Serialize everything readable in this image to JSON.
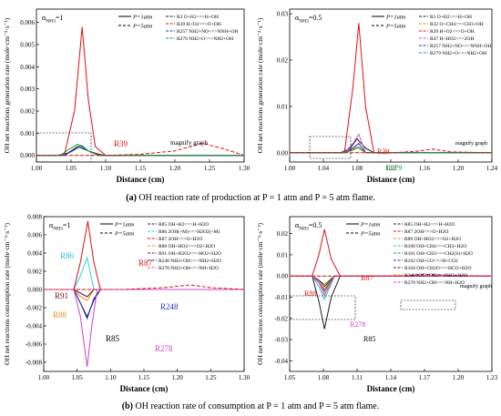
{
  "captions": {
    "a_prefix": "(a)",
    "a_text": "OH reaction rate of production at P = 1 atm and P = 5 atm flame.",
    "b_prefix": "(b)",
    "b_text": "OH reaction rate of consumption at P = 1 atm and P = 5 atm flame."
  },
  "chart_data": [
    {
      "id": "a-left",
      "type": "line",
      "panel_label": "α_NH3=1",
      "panel_label_main": "α",
      "panel_label_sub": "NH3",
      "panel_label_value": "=1",
      "xlabel": "Distance (cm)",
      "ylabel": "OH net reactions generation rate (mole·cm⁻³·s⁻¹)",
      "xlim": [
        1.0,
        1.3
      ],
      "ylim": [
        -0.0003,
        0.0066
      ],
      "xticks": [
        "1.00",
        "1.05",
        "1.10",
        "1.15",
        "1.20",
        "1.25",
        "1.30"
      ],
      "yticks": [
        "0.000",
        "0.001",
        "0.002",
        "0.003",
        "0.004",
        "0.005",
        "0.006"
      ],
      "ytick_values": [
        0,
        0.001,
        0.002,
        0.003,
        0.004,
        0.005,
        0.006
      ],
      "pressure_legend": [
        "P=1atm",
        "P=5atm"
      ],
      "series": [
        {
          "name": "R3 O+H2<=>H+OH",
          "color": "#1a1a1a",
          "x": [
            1.0,
            1.03,
            1.045,
            1.06,
            1.075,
            1.09,
            1.1,
            1.2,
            1.3
          ],
          "y": [
            0,
            0,
            0.0001,
            0.0004,
            0.0002,
            5e-05,
            0,
            0,
            0
          ]
        },
        {
          "name": "R39 H+O2<=>O+OH",
          "color": "#e01010",
          "x": [
            1.0,
            1.04,
            1.055,
            1.066,
            1.075,
            1.085,
            1.1,
            1.2,
            1.3
          ],
          "y": [
            0,
            0,
            0.002,
            0.0058,
            0.0025,
            0.0004,
            0,
            0,
            0
          ]
        },
        {
          "name": "R257 NH2+NO<=>NNH+OH",
          "color": "#2233cc",
          "x": [
            1.0,
            1.04,
            1.055,
            1.065,
            1.075,
            1.09,
            1.3
          ],
          "y": [
            0,
            0,
            0.00025,
            0.00045,
            0.0002,
            0,
            0
          ]
        },
        {
          "name": "R279 NH2+O<=>NH2+OH",
          "color": "#10a030",
          "x": [
            1.0,
            1.035,
            1.048,
            1.06,
            1.075,
            1.09,
            1.3
          ],
          "y": [
            0,
            0,
            0.0003,
            0.0005,
            0.0002,
            0,
            0
          ]
        },
        {
          "name": "R39 H+O2<=>O+OH (5 atm)",
          "color": "#e01010",
          "dashed": true,
          "x": [
            1.0,
            1.1,
            1.15,
            1.2,
            1.24,
            1.27,
            1.3
          ],
          "y": [
            0,
            0,
            5e-05,
            0.0002,
            0.00055,
            0.0003,
            0
          ]
        }
      ],
      "annotations": [
        "R39",
        "magnify graph"
      ]
    },
    {
      "id": "a-right",
      "type": "line",
      "panel_label": "α_NH3=0.5",
      "panel_label_main": "α",
      "panel_label_sub": "NH3",
      "panel_label_value": "=0.5",
      "xlabel": "Distance (cm)",
      "ylabel": "OH net reactions generation rate (mole·cm⁻³·s⁻¹)",
      "xlim": [
        1.0,
        1.24
      ],
      "ylim": [
        -0.002,
        0.031
      ],
      "xticks": [
        "1.00",
        "1.04",
        "1.08",
        "1.12",
        "1.16",
        "1.20",
        "1.24"
      ],
      "yticks": [
        "0.00",
        "0.01",
        "0.02",
        "0.03"
      ],
      "ytick_values": [
        0,
        0.01,
        0.02,
        0.03
      ],
      "pressure_legend": [
        "P=1atm",
        "P=5atm"
      ],
      "series": [
        {
          "name": "R3 O+H2<=>H+OH",
          "color": "#1a1a1a",
          "x": [
            1.0,
            1.06,
            1.072,
            1.08,
            1.09,
            1.1,
            1.24
          ],
          "y": [
            0,
            0,
            0.001,
            0.003,
            0.001,
            0,
            0
          ]
        },
        {
          "name": "R32 O+CH4<=>CH3+OH",
          "color": "#e09020",
          "x": [
            1.0,
            1.06,
            1.072,
            1.08,
            1.09,
            1.24
          ],
          "y": [
            0,
            0,
            0.0006,
            0.0012,
            0,
            0
          ]
        },
        {
          "name": "R39 H+O2<=>O+OH",
          "color": "#e01010",
          "x": [
            1.0,
            1.065,
            1.075,
            1.082,
            1.09,
            1.1,
            1.24
          ],
          "y": [
            0,
            0,
            0.014,
            0.028,
            0.01,
            0,
            0
          ]
        },
        {
          "name": "R47 H+HO2<=>2OH",
          "color": "#d060d0",
          "x": [
            1.0,
            1.065,
            1.075,
            1.082,
            1.09,
            1.24
          ],
          "y": [
            0,
            0,
            0.002,
            0.004,
            0,
            0
          ]
        },
        {
          "name": "R257 NH2+NO<=>NNH+OH",
          "color": "#2233cc",
          "x": [
            1.0,
            1.065,
            1.075,
            1.082,
            1.09,
            1.24
          ],
          "y": [
            0,
            0,
            0.001,
            0.002,
            0,
            0
          ]
        },
        {
          "name": "R279 NH2+O<=>NH2+OH",
          "color": "#10a030",
          "x": [
            1.0,
            1.065,
            1.075,
            1.082,
            1.09,
            1.24
          ],
          "y": [
            0,
            0,
            0.0006,
            0.0012,
            0,
            0
          ]
        },
        {
          "name": "R39 H+O2<=>O+OH (5 atm)",
          "color": "#e01010",
          "dashed": true,
          "x": [
            1.0,
            1.12,
            1.15,
            1.17,
            1.19,
            1.24
          ],
          "y": [
            0,
            0,
            0.0003,
            0.0008,
            0.0002,
            0
          ]
        }
      ],
      "annotations": [
        "R39",
        "R279",
        "magnify graph"
      ]
    },
    {
      "id": "b-left",
      "type": "line",
      "panel_label": "α_NH3=1",
      "panel_label_main": "α",
      "panel_label_sub": "NH3",
      "panel_label_value": "=1",
      "xlabel": "Distance (cm)",
      "ylabel": "OH net reactions consumption rate (mole·cm⁻³·s⁻¹)",
      "xlim": [
        1.0,
        1.3
      ],
      "ylim": [
        -0.009,
        0.008
      ],
      "xticks": [
        "1.00",
        "1.05",
        "1.10",
        "1.15",
        "1.20",
        "1.25",
        "1.30"
      ],
      "yticks": [
        "-0.008",
        "-0.006",
        "-0.004",
        "-0.002",
        "0.000",
        "0.002",
        "0.004",
        "0.006",
        "0.008"
      ],
      "ytick_values": [
        -0.008,
        -0.006,
        -0.004,
        -0.002,
        0,
        0.002,
        0.004,
        0.006,
        0.008
      ],
      "pressure_legend": [
        "P=1atm",
        "P=5atm"
      ],
      "series": [
        {
          "name": "R85 OH+H2<=>H+H2O",
          "color": "#1a1a1a",
          "x": [
            1.0,
            1.045,
            1.055,
            1.065,
            1.075,
            1.085,
            1.3
          ],
          "y": [
            0,
            0,
            -0.0015,
            -0.003,
            -0.0012,
            0,
            0
          ]
        },
        {
          "name": "R86 2OH(+M)<=>H2O2(+M)",
          "color": "#30d0e0",
          "x": [
            1.0,
            1.045,
            1.055,
            1.065,
            1.075,
            1.3
          ],
          "y": [
            0,
            0,
            0.0015,
            0.0035,
            0,
            0
          ]
        },
        {
          "name": "R87 2OH<=>O+H2O",
          "color": "#e01010",
          "x": [
            1.0,
            1.045,
            1.055,
            1.066,
            1.075,
            1.085,
            1.3
          ],
          "y": [
            0,
            0,
            0.003,
            0.0075,
            0.003,
            0,
            0
          ]
        },
        {
          "name": "R88 OH+HO2<=>O2+H2O",
          "color": "#e09020",
          "x": [
            1.0,
            1.045,
            1.055,
            1.065,
            1.075,
            1.3
          ],
          "y": [
            0,
            0,
            -0.0008,
            -0.0012,
            0,
            0
          ]
        },
        {
          "name": "R91 OH+H2O2<=>HO2+H2O",
          "color": "#7a1010",
          "x": [
            1.0,
            1.045,
            1.055,
            1.065,
            1.075,
            1.3
          ],
          "y": [
            0,
            0,
            -0.0004,
            -0.0008,
            0,
            0
          ]
        },
        {
          "name": "R248 NH3+OH<=>NH2+H2O",
          "color": "#2233cc",
          "x": [
            1.0,
            1.045,
            1.055,
            1.065,
            1.075,
            1.085,
            1.3
          ],
          "y": [
            0,
            0,
            -0.0015,
            -0.0032,
            -0.001,
            0,
            0
          ]
        },
        {
          "name": "R278 NH2+OH<=>NH+H2O",
          "color": "#d040d0",
          "x": [
            1.0,
            1.045,
            1.055,
            1.065,
            1.072,
            1.08,
            1.3
          ],
          "y": [
            0,
            0,
            -0.003,
            -0.0085,
            -0.004,
            0,
            0
          ]
        },
        {
          "name": "R87 2OH<=>O+H2O (5 atm)",
          "color": "#e01010",
          "dashed": true,
          "x": [
            1.0,
            1.12,
            1.18,
            1.22,
            1.25,
            1.3
          ],
          "y": [
            0,
            0,
            0.0002,
            0.0005,
            0.0002,
            0
          ]
        }
      ],
      "annotations": [
        "R86",
        "R91",
        "R87",
        "R88",
        "R85",
        "R248",
        "R278"
      ]
    },
    {
      "id": "b-right",
      "type": "line",
      "panel_label": "α_NH3=0.5",
      "panel_label_main": "α",
      "panel_label_sub": "NH3",
      "panel_label_value": "=0.5",
      "xlabel": "Distance (cm)",
      "ylabel": "OH net reactions consumption rate (mole·cm⁻³·s⁻¹)",
      "xlim": [
        1.05,
        1.23
      ],
      "ylim": [
        -0.045,
        0.028
      ],
      "xticks": [
        "1.05",
        "1.08",
        "1.11",
        "1.14",
        "1.17",
        "1.20",
        "1.23"
      ],
      "yticks": [
        "-0.04",
        "-0.03",
        "-0.02",
        "-0.01",
        "0.00",
        "0.01",
        "0.02"
      ],
      "ytick_values": [
        -0.04,
        -0.03,
        -0.02,
        -0.01,
        0,
        0.01,
        0.02
      ],
      "pressure_legend": [
        "P=1atm",
        "P=5atm"
      ],
      "series": [
        {
          "name": "R85 OH+H2<=>H+H2O",
          "color": "#1a1a1a",
          "x": [
            1.05,
            1.07,
            1.076,
            1.081,
            1.087,
            1.095,
            1.23
          ],
          "y": [
            0,
            0,
            -0.012,
            -0.025,
            -0.01,
            0,
            0
          ]
        },
        {
          "name": "R87 2OH<=>O+H2O",
          "color": "#e01010",
          "x": [
            1.05,
            1.07,
            1.076,
            1.081,
            1.087,
            1.095,
            1.23
          ],
          "y": [
            0,
            0,
            0.01,
            0.022,
            0.008,
            0,
            0
          ]
        },
        {
          "name": "R88 OH+HO2<=>O2+H2O",
          "color": "#e09020",
          "x": [
            1.05,
            1.07,
            1.076,
            1.081,
            1.09,
            1.23
          ],
          "y": [
            0,
            0,
            -0.003,
            -0.006,
            0,
            0
          ]
        },
        {
          "name": "R100 OH+CH4<=>CH3+H2O",
          "color": "#20c0d0",
          "x": [
            1.05,
            1.07,
            1.076,
            1.081,
            1.09,
            1.23
          ],
          "y": [
            0,
            0,
            -0.005,
            -0.011,
            0,
            0
          ]
        },
        {
          "name": "R101 OH+CH3<=>CH2(S)+H2O",
          "color": "#10a030",
          "x": [
            1.05,
            1.07,
            1.076,
            1.081,
            1.09,
            1.23
          ],
          "y": [
            0,
            0,
            -0.002,
            -0.004,
            0,
            0
          ]
        },
        {
          "name": "R102 OH+CO<=>H+CO2",
          "color": "#2233cc",
          "x": [
            1.05,
            1.07,
            1.076,
            1.081,
            1.09,
            1.23
          ],
          "y": [
            0,
            0,
            -0.003,
            -0.007,
            0,
            0
          ]
        },
        {
          "name": "R104 OH+CH2O<=>HCO+H2O",
          "color": "#7a1010",
          "x": [
            1.05,
            1.07,
            1.076,
            1.081,
            1.09,
            1.23
          ],
          "y": [
            0,
            0,
            -0.002,
            -0.005,
            0,
            0
          ]
        },
        {
          "name": "R248 NH3+OH<=>NH2+H2O",
          "color": "#f0c020",
          "x": [
            1.05,
            1.07,
            1.076,
            1.081,
            1.09,
            1.23
          ],
          "y": [
            0,
            0,
            -0.003,
            -0.008,
            0,
            0
          ]
        },
        {
          "name": "R278 NH2+OH<=>NH+H2O",
          "color": "#d040d0",
          "x": [
            1.05,
            1.07,
            1.076,
            1.081,
            1.09,
            1.23
          ],
          "y": [
            0,
            0,
            -0.003,
            -0.009,
            0,
            0
          ]
        },
        {
          "name": "R87 2OH<=>O+H2O (5 atm)",
          "color": "#e01010",
          "dashed": true,
          "x": [
            1.05,
            1.15,
            1.17,
            1.19,
            1.23
          ],
          "y": [
            0,
            0,
            0.0008,
            0.0003,
            0
          ]
        }
      ],
      "annotations": [
        "R88",
        "R87",
        "R278",
        "R85",
        "magnify graph"
      ]
    }
  ]
}
